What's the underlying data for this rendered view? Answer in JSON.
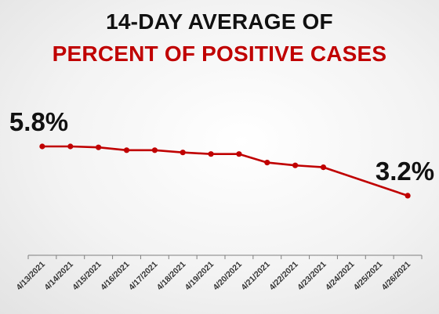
{
  "title": {
    "line1": "14-DAY AVERAGE OF",
    "line2": "PERCENT OF POSITIVE CASES"
  },
  "colors": {
    "title_line1": "#111111",
    "title_line2": "#c00000",
    "series": "#c00000",
    "axis": "#7f7f7f",
    "annotation": "#111111"
  },
  "chart_data": {
    "type": "line",
    "title": "14-DAY AVERAGE OF PERCENT OF POSITIVE CASES",
    "xlabel": "",
    "ylabel": "",
    "categories": [
      "4/13/2021",
      "4/14/2021",
      "4/15/2021",
      "4/16/2021",
      "4/17/2021",
      "4/18/2021",
      "4/19/2021",
      "4/20/2021",
      "4/21/2021",
      "4/22/2021",
      "4/23/2021",
      "4/24/2021",
      "4/25/2021",
      "4/26/2021"
    ],
    "series": [
      {
        "values": [
          5.8,
          5.8,
          5.75,
          5.6,
          5.6,
          5.48,
          5.4,
          5.4,
          4.95,
          4.8,
          4.7,
          null,
          null,
          3.2
        ]
      }
    ],
    "annotations": [
      {
        "text": "5.8%",
        "category": "4/13/2021",
        "value": 5.8
      },
      {
        "text": "3.2%",
        "category": "4/26/2021",
        "value": 3.2
      }
    ],
    "grid": false,
    "legend": "none",
    "y_axis_visible": false,
    "x_tick_label_rotation": "-45deg"
  }
}
